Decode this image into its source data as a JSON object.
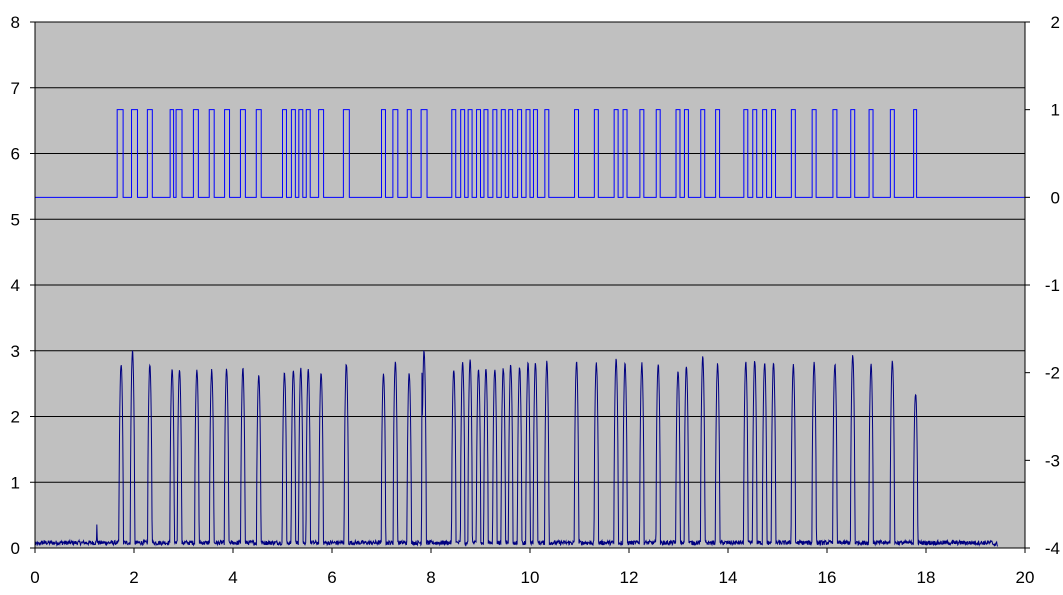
{
  "chart_data": {
    "type": "line",
    "title": "",
    "xlabel": "",
    "ylabel": "",
    "y2label": "",
    "xlim": [
      0,
      20
    ],
    "ylim": [
      0,
      8
    ],
    "y2lim": [
      -4,
      2
    ],
    "x_ticks": [
      "0",
      "2",
      "4",
      "6",
      "8",
      "10",
      "12",
      "14",
      "16",
      "18",
      "20"
    ],
    "y_ticks": [
      "0",
      "1",
      "2",
      "3",
      "4",
      "5",
      "6",
      "7",
      "8"
    ],
    "y2_ticks": [
      "-4",
      "-3",
      "-2",
      "-1",
      "0",
      "1",
      "2"
    ],
    "grid": true,
    "legend": "none",
    "plot_background": "#c0c0c0",
    "series": [
      {
        "axis": "secondary",
        "color": "#0000ff",
        "style": "step",
        "low": 0,
        "high": 1,
        "x_range": [
          0,
          20
        ],
        "pulses": [
          [
            1.66,
            1.78
          ],
          [
            1.95,
            2.07
          ],
          [
            2.27,
            2.37
          ],
          [
            2.73,
            2.8
          ],
          [
            2.85,
            2.97
          ],
          [
            3.2,
            3.3
          ],
          [
            3.52,
            3.62
          ],
          [
            3.83,
            3.93
          ],
          [
            4.15,
            4.25
          ],
          [
            4.47,
            4.57
          ],
          [
            5.0,
            5.08
          ],
          [
            5.18,
            5.26
          ],
          [
            5.33,
            5.41
          ],
          [
            5.48,
            5.56
          ],
          [
            5.73,
            5.83
          ],
          [
            6.23,
            6.35
          ],
          [
            7.0,
            7.08
          ],
          [
            7.23,
            7.33
          ],
          [
            7.52,
            7.6
          ],
          [
            7.8,
            7.92
          ],
          [
            8.42,
            8.5
          ],
          [
            8.6,
            8.68
          ],
          [
            8.75,
            8.83
          ],
          [
            8.92,
            9.0
          ],
          [
            9.07,
            9.15
          ],
          [
            9.25,
            9.33
          ],
          [
            9.42,
            9.5
          ],
          [
            9.57,
            9.65
          ],
          [
            9.75,
            9.83
          ],
          [
            9.92,
            10.0
          ],
          [
            10.07,
            10.15
          ],
          [
            10.3,
            10.38
          ],
          [
            10.9,
            10.98
          ],
          [
            11.3,
            11.38
          ],
          [
            11.7,
            11.78
          ],
          [
            11.88,
            11.96
          ],
          [
            12.22,
            12.3
          ],
          [
            12.55,
            12.63
          ],
          [
            12.95,
            13.03
          ],
          [
            13.12,
            13.2
          ],
          [
            13.45,
            13.53
          ],
          [
            13.75,
            13.83
          ],
          [
            14.32,
            14.4
          ],
          [
            14.5,
            14.58
          ],
          [
            14.7,
            14.78
          ],
          [
            14.88,
            14.96
          ],
          [
            15.28,
            15.36
          ],
          [
            15.7,
            15.78
          ],
          [
            16.12,
            16.2
          ],
          [
            16.48,
            16.56
          ],
          [
            16.85,
            16.93
          ],
          [
            17.28,
            17.36
          ],
          [
            17.75,
            17.81
          ]
        ]
      },
      {
        "axis": "primary",
        "color": "#000080",
        "style": "pulse-signal",
        "baseline": 0.08,
        "x_range": [
          0,
          19.45
        ],
        "pulses": [
          [
            1.74,
            2.8
          ],
          [
            1.97,
            3.0
          ],
          [
            2.32,
            2.78
          ],
          [
            2.77,
            2.72
          ],
          [
            2.92,
            2.72
          ],
          [
            3.27,
            2.72
          ],
          [
            3.57,
            2.7
          ],
          [
            3.87,
            2.72
          ],
          [
            4.2,
            2.72
          ],
          [
            4.52,
            2.63
          ],
          [
            5.04,
            2.67
          ],
          [
            5.22,
            2.72
          ],
          [
            5.37,
            2.72
          ],
          [
            5.52,
            2.7
          ],
          [
            5.78,
            2.67
          ],
          [
            6.29,
            2.8
          ],
          [
            7.04,
            2.65
          ],
          [
            7.28,
            2.83
          ],
          [
            7.56,
            2.66
          ],
          [
            7.86,
            3.0
          ],
          [
            8.46,
            2.7
          ],
          [
            8.64,
            2.82
          ],
          [
            8.79,
            2.85
          ],
          [
            8.96,
            2.72
          ],
          [
            9.11,
            2.74
          ],
          [
            9.29,
            2.73
          ],
          [
            9.46,
            2.73
          ],
          [
            9.61,
            2.78
          ],
          [
            9.79,
            2.75
          ],
          [
            9.96,
            2.8
          ],
          [
            10.11,
            2.82
          ],
          [
            10.34,
            2.83
          ],
          [
            10.94,
            2.83
          ],
          [
            11.34,
            2.82
          ],
          [
            11.74,
            2.88
          ],
          [
            11.92,
            2.8
          ],
          [
            12.26,
            2.8
          ],
          [
            12.59,
            2.8
          ],
          [
            12.99,
            2.7
          ],
          [
            13.16,
            2.77
          ],
          [
            13.49,
            2.9
          ],
          [
            13.79,
            2.8
          ],
          [
            14.36,
            2.82
          ],
          [
            14.54,
            2.85
          ],
          [
            14.74,
            2.82
          ],
          [
            14.92,
            2.82
          ],
          [
            15.32,
            2.78
          ],
          [
            15.74,
            2.82
          ],
          [
            16.16,
            2.8
          ],
          [
            16.52,
            2.93
          ],
          [
            16.89,
            2.8
          ],
          [
            17.32,
            2.85
          ],
          [
            17.79,
            2.35
          ]
        ],
        "spikes": [
          [
            1.25,
            0.38
          ],
          [
            7.82,
            3.4
          ]
        ]
      }
    ]
  }
}
